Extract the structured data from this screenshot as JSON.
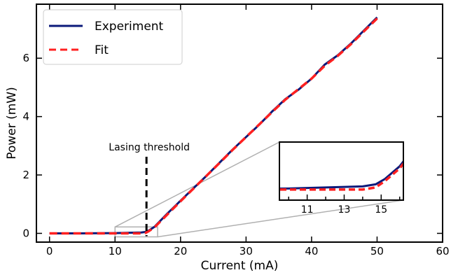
{
  "chart_data": {
    "type": "line",
    "xlabel": "Current (mA)",
    "ylabel": "Power (mW)",
    "xlim": [
      -2,
      60
    ],
    "ylim": [
      -0.3,
      7.85
    ],
    "xticks": [
      0,
      10,
      20,
      30,
      40,
      50,
      60
    ],
    "yticks": [
      0,
      2,
      4,
      6
    ],
    "legend_position": "top-left",
    "series": [
      {
        "name": "Experiment",
        "color": "#0b1a7a",
        "style": "solid",
        "x": [
          0,
          5,
          10,
          14,
          14.7,
          15.2,
          16,
          18,
          20,
          22,
          24,
          26,
          28,
          30,
          32,
          34,
          36,
          38,
          40,
          42,
          44,
          46,
          48,
          50
        ],
        "y": [
          0.0,
          0.0,
          0.01,
          0.03,
          0.05,
          0.1,
          0.22,
          0.68,
          1.12,
          1.55,
          1.98,
          2.43,
          2.88,
          3.3,
          3.72,
          4.18,
          4.6,
          4.92,
          5.3,
          5.78,
          6.1,
          6.5,
          6.95,
          7.4
        ]
      },
      {
        "name": "Fit",
        "color": "#ff2020",
        "style": "dashed",
        "x": [
          0,
          5,
          10,
          14,
          14.7,
          15.2,
          16,
          18,
          20,
          22,
          24,
          26,
          28,
          30,
          32,
          34,
          36,
          38,
          40,
          42,
          44,
          46,
          48,
          50
        ],
        "y": [
          0.0,
          0.0,
          0.0,
          0.0,
          0.02,
          0.08,
          0.2,
          0.65,
          1.1,
          1.54,
          1.98,
          2.42,
          2.87,
          3.3,
          3.73,
          4.16,
          4.58,
          4.94,
          5.3,
          5.74,
          6.08,
          6.48,
          6.92,
          7.36
        ]
      }
    ],
    "annotations": [
      {
        "text": "Lasing threshold",
        "x": 14.8
      }
    ],
    "inset": {
      "xlim": [
        9.5,
        16.2
      ],
      "ylim": [
        -0.1,
        0.45
      ],
      "xticks_labeled": [
        11,
        13,
        15
      ],
      "zoom_box": {
        "x": [
          10,
          16.5
        ],
        "y": [
          -0.12,
          0.22
        ]
      }
    }
  }
}
